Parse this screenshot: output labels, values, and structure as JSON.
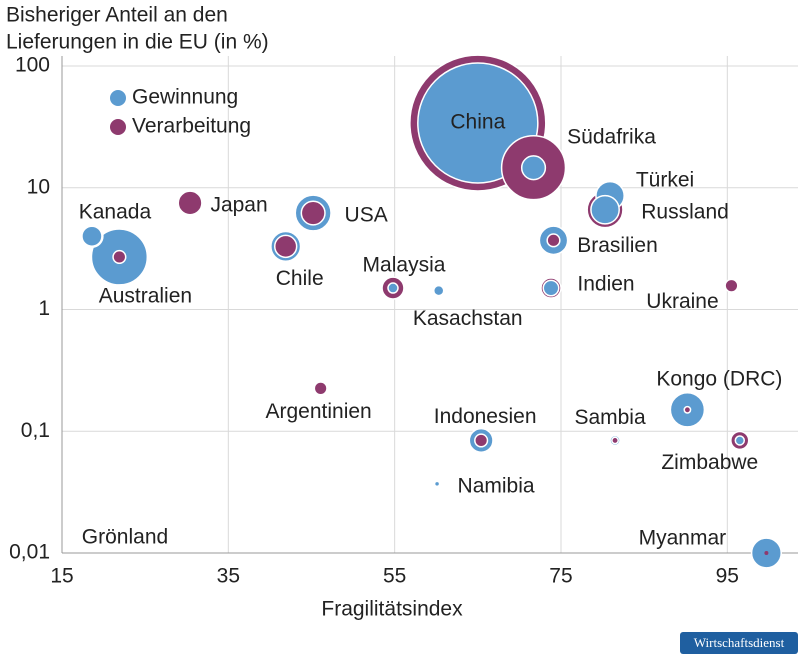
{
  "chart_data": {
    "type": "bubble",
    "title": [
      "Bisheriger Anteil an den",
      "Lieferungen in die EU (in %)"
    ],
    "x_label": "Fragilitätsindex",
    "source": "Wirtschaftsdienst",
    "y_scale": "log",
    "grid": true,
    "legend": "top-left",
    "xlim": [
      15,
      103.5
    ],
    "xticks": [
      15,
      35,
      55,
      75,
      95
    ],
    "ylim": [
      0.01,
      100
    ],
    "yticks": [
      {
        "value": 0.01,
        "label": "0,01"
      },
      {
        "value": 0.1,
        "label": "0,1"
      },
      1,
      10,
      100
    ],
    "point_labels": [
      "China",
      "Südafrika",
      "Türkei",
      "Russland",
      "Brasilien",
      "Indien",
      "Ukraine",
      "Kanada",
      "Australien",
      "Japan",
      "USA",
      "Chile",
      "Malaysia",
      "Kasachstan",
      "Argentinien",
      "Indonesien",
      "Namibia",
      "Sambia",
      "Kongo (DRC)",
      "Zimbabwe",
      "Myanmar",
      "Grönland"
    ],
    "x": [
      65,
      71.7,
      80.9,
      80.3,
      74.1,
      73.8,
      95.5,
      18.6,
      21.9,
      30.4,
      45.2,
      41.9,
      54.8,
      60.3,
      46.1,
      65.4,
      60.1,
      81.5,
      90.2,
      96.5,
      99.7,
      null
    ],
    "series": [
      {
        "name": "Gewinnung",
        "color": "#5b9bd0",
        "values": [
          34,
          14.6,
          8.6,
          6.6,
          3.7,
          1.5,
          null,
          4,
          2.7,
          null,
          6.2,
          3.3,
          1.5,
          1.43,
          null,
          0.084,
          0.037,
          0.084,
          0.15,
          0.084,
          0.01,
          null
        ],
        "sizes": [
          360,
          14,
          20,
          20,
          20,
          6,
          null,
          10,
          78,
          null,
          32,
          22,
          2.5,
          2.5,
          null,
          14,
          0.3,
          2.5,
          29,
          2,
          22,
          null
        ]
      },
      {
        "name": "Verarbeitung",
        "color": "#8e3a6e",
        "values": [
          34,
          14.6,
          null,
          6.6,
          3.7,
          1.5,
          1.57,
          4,
          2.7,
          7.5,
          6.2,
          3.3,
          1.5,
          null,
          0.225,
          0.084,
          null,
          0.084,
          0.15,
          0.084,
          0.01,
          null
        ],
        "sizes": [
          462,
          102,
          null,
          32,
          4,
          10,
          4,
          12,
          4,
          14,
          14,
          12,
          12,
          null,
          4,
          4,
          null,
          1,
          1,
          8,
          0.4,
          null
        ]
      }
    ]
  }
}
